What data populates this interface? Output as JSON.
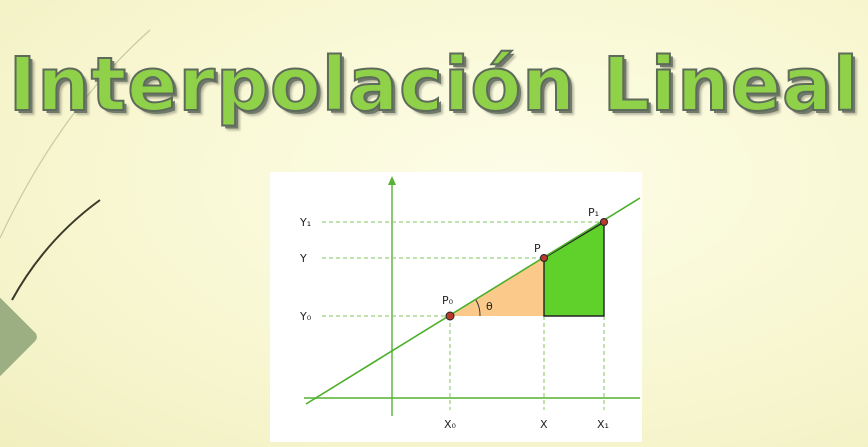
{
  "title": "Interpolación Lineal",
  "colors": {
    "title_fill": "#8fd24a",
    "line": "#4caf2a",
    "triangle_light": "#fbc98a",
    "triangle_green": "#5fd12a",
    "point": "#b83a2a"
  },
  "diagram": {
    "y_labels": {
      "y1": "Y₁",
      "y": "Y",
      "y0": "Y₀"
    },
    "x_labels": {
      "x0": "X₀",
      "x": "X",
      "x1": "X₁"
    },
    "points": {
      "p0": "P₀",
      "p": "P",
      "p1": "P₁"
    },
    "angle": "θ"
  }
}
